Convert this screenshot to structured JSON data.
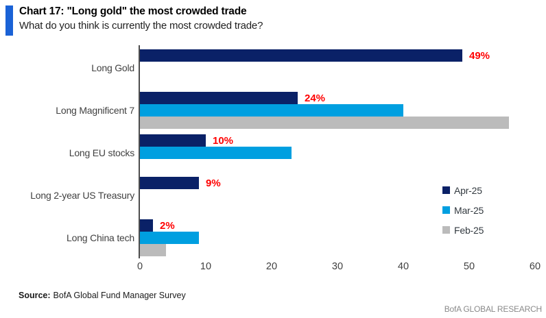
{
  "header": {
    "title": "Chart 17: \"Long gold\" the most crowded trade",
    "subtitle": "What do you think is currently the most crowded trade?"
  },
  "chart_data": {
    "type": "bar",
    "orientation": "horizontal",
    "title": "Chart 17: \"Long gold\" the most crowded trade",
    "subtitle": "What do you think is currently the most crowded trade?",
    "categories": [
      "Long Gold",
      "Long Magnificent 7",
      "Long EU stocks",
      "Long 2-year US Treasury",
      "Long China tech"
    ],
    "series": [
      {
        "name": "Apr-25",
        "color": "#0A2167",
        "values": [
          49,
          24,
          10,
          9,
          2
        ]
      },
      {
        "name": "Mar-25",
        "color": "#009FE0",
        "values": [
          null,
          40,
          23,
          null,
          9
        ]
      },
      {
        "name": "Feb-25",
        "color": "#BBBBBB",
        "values": [
          null,
          56,
          null,
          null,
          4
        ]
      }
    ],
    "data_labels": {
      "series": "Apr-25",
      "labels": [
        "49%",
        "24%",
        "10%",
        "9%",
        "2%"
      ],
      "color": "#FF0000"
    },
    "x_axis": {
      "min": 0,
      "max": 60,
      "tick_interval": 10,
      "tick_labels": [
        "0",
        "10",
        "20",
        "30",
        "40",
        "50",
        "60"
      ]
    },
    "legend": {
      "position": "right-middle",
      "entries": [
        "Apr-25",
        "Mar-25",
        "Feb-25"
      ]
    },
    "grid": false,
    "accent_color": "#1A62D6",
    "axis_color": "#4d4d4d"
  },
  "footer": {
    "source_label": "Source:",
    "source_text": "BofA Global Fund Manager Survey",
    "brand": "BofA GLOBAL RESEARCH"
  }
}
